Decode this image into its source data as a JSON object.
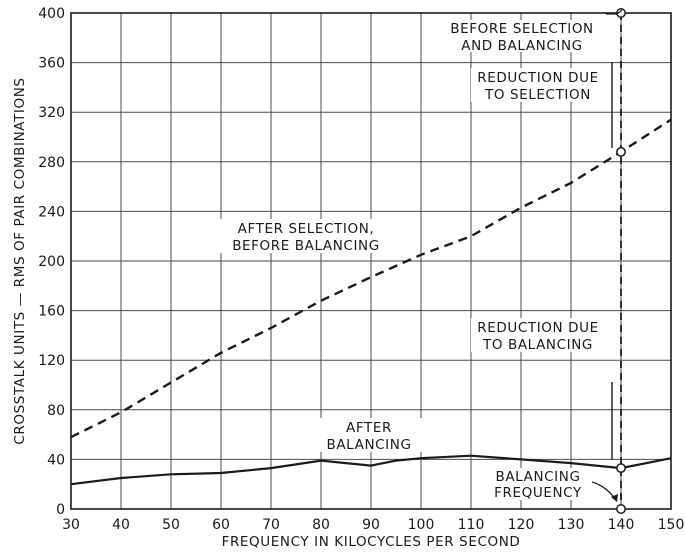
{
  "chart_data": {
    "type": "line",
    "title": "",
    "xlabel": "FREQUENCY IN KILOCYCLES PER SECOND",
    "ylabel": "CROSSTALK UNITS — RMS OF PAIR COMBINATIONS",
    "xlim": [
      30,
      150
    ],
    "ylim": [
      0,
      400
    ],
    "xticks": [
      30,
      40,
      50,
      60,
      70,
      80,
      90,
      100,
      110,
      120,
      130,
      140,
      150
    ],
    "yticks": [
      0,
      40,
      80,
      120,
      160,
      200,
      240,
      280,
      320,
      360,
      400
    ],
    "grid": true,
    "series": [
      {
        "name": "AFTER SELECTION, BEFORE BALANCING",
        "style": "dashed",
        "x": [
          30,
          40,
          50,
          60,
          70,
          80,
          90,
          100,
          110,
          120,
          130,
          140,
          150
        ],
        "y": [
          58,
          78,
          102,
          126,
          146,
          168,
          187,
          205,
          220,
          243,
          263,
          288,
          314
        ]
      },
      {
        "name": "AFTER BALANCING",
        "style": "solid",
        "x": [
          30,
          40,
          50,
          60,
          70,
          80,
          90,
          95,
          100,
          110,
          120,
          130,
          140,
          150
        ],
        "y": [
          20,
          25,
          28,
          29,
          33,
          39,
          35,
          39,
          41,
          43,
          40,
          37,
          33,
          41
        ]
      }
    ],
    "markers": [
      {
        "x": 140,
        "y": 400
      },
      {
        "x": 140,
        "y": 288
      },
      {
        "x": 140,
        "y": 33
      },
      {
        "x": 140,
        "y": 0
      }
    ],
    "annotations": {
      "before_selection": [
        "BEFORE SELECTION",
        "AND BALANCING"
      ],
      "reduction_selection": [
        "REDUCTION DUE",
        "TO SELECTION"
      ],
      "after_selection": [
        "AFTER SELECTION,",
        "BEFORE BALANCING"
      ],
      "reduction_balancing": [
        "REDUCTION DUE",
        "TO BALANCING"
      ],
      "after_balancing": [
        "AFTER",
        "BALANCING"
      ],
      "balancing_frequency": [
        "BALANCING",
        "FREQUENCY"
      ]
    }
  },
  "colors": {
    "ink": "#1a1a1a",
    "grid": "#4a4a4a",
    "background": "#ffffff"
  }
}
